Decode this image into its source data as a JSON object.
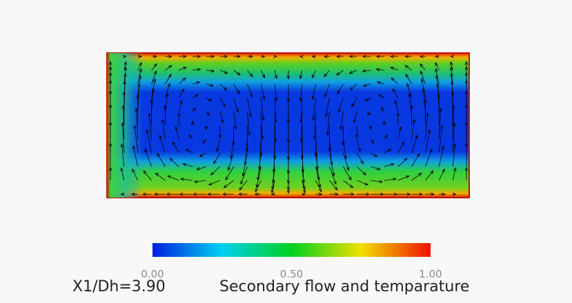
{
  "caption": {
    "position": "X1/Dh=3.90",
    "title": "Secondary flow and temparature"
  },
  "colorbar": {
    "range": [
      0,
      1
    ],
    "ticks": [
      {
        "value": 0,
        "label": "0.00"
      },
      {
        "value": 0.5,
        "label": "0.50"
      },
      {
        "value": 1,
        "label": "1.00"
      }
    ]
  }
}
